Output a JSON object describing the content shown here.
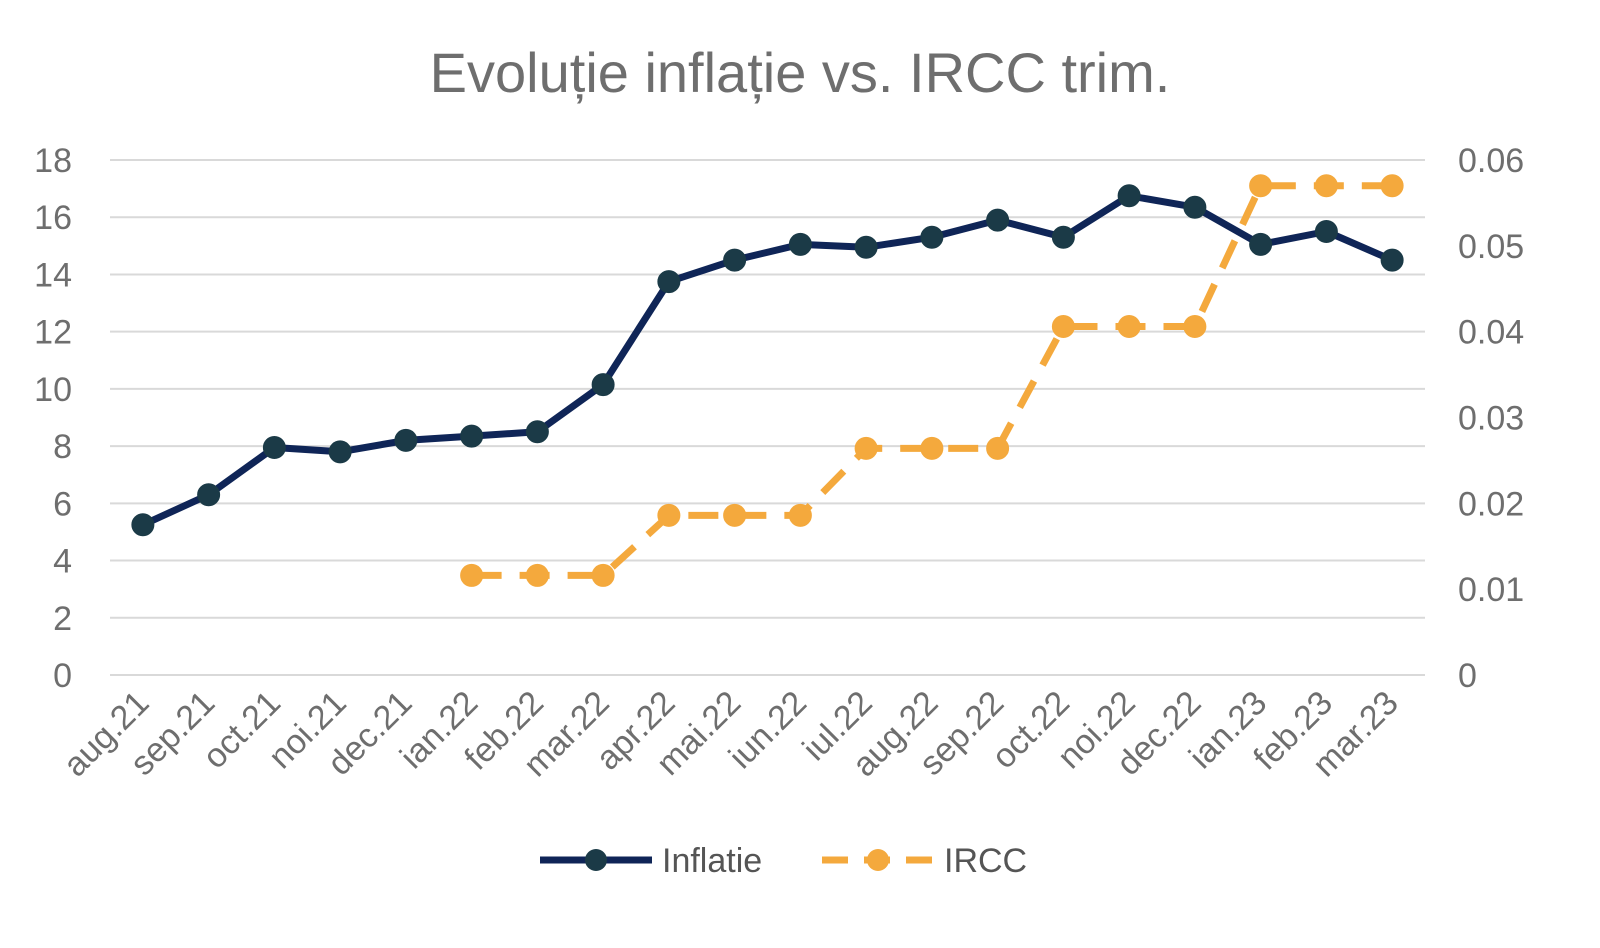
{
  "chart_data": {
    "type": "line",
    "title": "Evoluție inflație vs. IRCC trim.",
    "xlabel": "",
    "ylabel": "",
    "categories": [
      "aug.21",
      "sep.21",
      "oct.21",
      "noi.21",
      "dec.21",
      "ian.22",
      "feb.22",
      "mar.22",
      "apr.22",
      "mai.22",
      "iun.22",
      "iul.22",
      "aug.22",
      "sep.22",
      "oct.22",
      "noi.22",
      "dec.22",
      "ian.23",
      "feb.23",
      "mar.23"
    ],
    "y_ticks": [
      "0",
      "2",
      "4",
      "6",
      "8",
      "10",
      "12",
      "14",
      "16",
      "18"
    ],
    "y2_ticks": [
      "0",
      "0.01",
      "0.02",
      "0.03",
      "0.04",
      "0.05",
      "0.06"
    ],
    "ylim": [
      0,
      18
    ],
    "y2lim": [
      0,
      0.06
    ],
    "grid": true,
    "legend_position": "bottom",
    "series": [
      {
        "name": "Inflatie",
        "axis": "left",
        "color": "#0f2557",
        "marker_color": "#1b3a47",
        "style": "solid",
        "values": [
          5.25,
          6.3,
          7.95,
          7.8,
          8.2,
          8.35,
          8.5,
          10.15,
          13.75,
          14.5,
          15.05,
          14.95,
          15.3,
          15.9,
          15.3,
          16.75,
          16.35,
          15.05,
          15.5,
          14.5
        ]
      },
      {
        "name": "IRCC",
        "axis": "right",
        "color": "#f4a93d",
        "marker_color": "#f4a93d",
        "style": "dashed",
        "values": [
          null,
          null,
          null,
          null,
          null,
          0.0116,
          0.0116,
          0.0116,
          0.0186,
          0.0186,
          0.0186,
          0.0264,
          0.0264,
          0.0264,
          0.0406,
          0.0406,
          0.0406,
          0.057,
          0.057,
          0.057
        ]
      }
    ]
  }
}
